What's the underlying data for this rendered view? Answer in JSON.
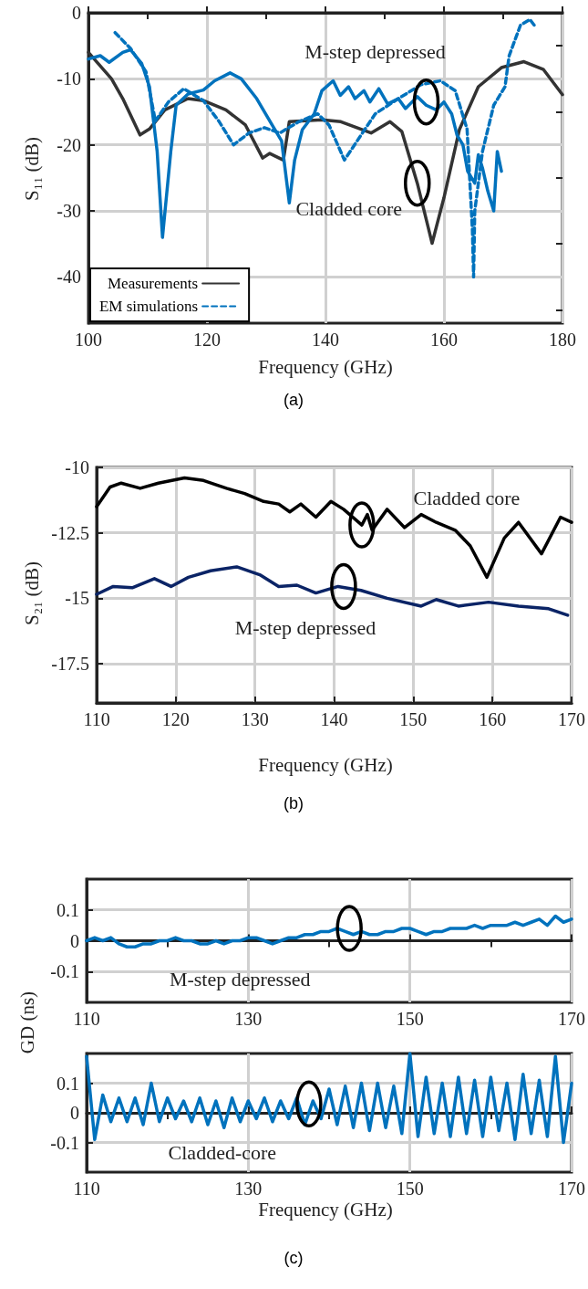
{
  "chart_data": [
    {
      "type": "line",
      "xlabel": "Frequency (GHz)",
      "ylabel": "S₁₁ (dB)",
      "xlim": [
        100,
        180
      ],
      "ylim": [
        -47,
        0
      ],
      "xticks": [
        100,
        {
          "value": 110,
          "label": null
        },
        120,
        {
          "value": 130,
          "label": null
        },
        140,
        {
          "value": 150,
          "label": null
        },
        160,
        {
          "value": 170,
          "label": null
        },
        180
      ],
      "yticks": [
        {
          "value": -45,
          "label": null
        },
        -40,
        {
          "value": -35,
          "label": null
        },
        -30,
        {
          "value": -25,
          "label": null
        },
        -20,
        {
          "value": -15,
          "label": null
        },
        -10,
        {
          "value": -5,
          "label": null
        },
        0
      ],
      "grid": true,
      "legend": "bottom left",
      "series": [
        {
          "name": "Measurements",
          "color": "#333333",
          "line_style": "solid",
          "x": [
            100,
            103.9,
            105.8,
            108.7,
            110.3,
            112.9,
            116.8,
            119.4,
            123.2,
            126.5,
            129.4,
            130.6,
            132.9,
            133.9,
            139.4,
            142.6,
            147.7,
            150.9,
            152.9,
            155.5,
            158,
            160,
            162.6,
            165.8,
            169.7,
            173.5,
            176.8,
            180
          ],
          "values": [
            -6,
            -10,
            -13,
            -18.5,
            -17.6,
            -14.7,
            -13,
            -13.3,
            -14.7,
            -17,
            -22,
            -21.3,
            -22.3,
            -16.5,
            -16.2,
            -16.5,
            -18.2,
            -16.5,
            -18,
            -25.8,
            -34.9,
            -28,
            -17.7,
            -11.2,
            -8.3,
            -7.4,
            -8.6,
            -12.4
          ]
        },
        {
          "color": "#0072bd",
          "line_style": "solid",
          "x": [
            100,
            102,
            103.5,
            105.8,
            107.1,
            109,
            110.3,
            111.6,
            112.5,
            113.9,
            114.8,
            116.8,
            119.4,
            121.3,
            123.9,
            125.8,
            128.4,
            131,
            132.6,
            133.9,
            134.8,
            136.1,
            138.1,
            139.4,
            141.3,
            142.5,
            143.9,
            145,
            146.5,
            147.5,
            149,
            150.5,
            152.3,
            153.5,
            155.5,
            157,
            158.7,
            160,
            161.3,
            162.2,
            163.2,
            164,
            165.2,
            165.8,
            166.5,
            167.4,
            168.4,
            169,
            169.7
          ],
          "values": [
            -7,
            -6.5,
            -7.5,
            -6,
            -5.6,
            -7.7,
            -11.2,
            -21,
            -34,
            -21,
            -14,
            -12.3,
            -11.7,
            -10.3,
            -9.1,
            -10,
            -13,
            -17,
            -19.4,
            -28.8,
            -22.3,
            -17.7,
            -15.3,
            -11.8,
            -10.3,
            -12.5,
            -11.2,
            -13,
            -11.8,
            -13.5,
            -11.5,
            -13.8,
            -13,
            -14.5,
            -12.7,
            -14,
            -14.7,
            -13.5,
            -15.3,
            -18.5,
            -20,
            -24,
            -25.8,
            -21.5,
            -23.5,
            -27,
            -30,
            -21,
            -24
          ]
        },
        {
          "name": "EM simulations",
          "color": "#0072bd",
          "line_style": "dashed",
          "x": [
            104.5,
            107.1,
            109.7,
            111.3,
            113.5,
            116.1,
            119.4,
            122,
            124.5,
            127.1,
            129.7,
            132.3,
            135.5,
            138.7,
            140.6,
            143.2,
            145.8,
            148.4,
            152.3,
            156.1,
            159.4,
            161.9,
            163.9,
            164.8,
            165,
            165.2,
            166.5,
            168.4,
            170.3,
            171,
            172.9,
            174.5,
            175.5
          ],
          "values": [
            -3,
            -5.4,
            -8.9,
            -16.4,
            -13.5,
            -11.5,
            -13.3,
            -16.4,
            -20,
            -18.2,
            -17.4,
            -18.2,
            -16.5,
            -15.3,
            -17,
            -22.3,
            -18.8,
            -15.3,
            -13,
            -10.9,
            -10.3,
            -11.8,
            -17.6,
            -32.9,
            -40,
            -30,
            -21,
            -14,
            -11.2,
            -6.5,
            -1.9,
            -1,
            -2.2
          ]
        }
      ],
      "annotations": [
        {
          "text": "M-step depressed",
          "x": 157,
          "y": -13.5
        },
        {
          "text": "Cladded core",
          "x": 155.5,
          "y": -25.8
        },
        "(a)"
      ]
    },
    {
      "type": "line",
      "xlabel": "Frequency (GHz)",
      "ylabel": "S₂₁ (dB)",
      "xlim": [
        110,
        170
      ],
      "ylim": [
        -19,
        -10
      ],
      "xticks": [
        110,
        120,
        130,
        140,
        150,
        160,
        170
      ],
      "yticks": [
        -17.5,
        -15,
        -12.5,
        -10
      ],
      "grid": true,
      "series": [
        {
          "color": "#000000",
          "line_style": "solid",
          "x": [
            110,
            111.7,
            113.1,
            115.5,
            117.8,
            121.1,
            123.5,
            126.4,
            128.7,
            131.1,
            133,
            134.4,
            135.8,
            137.7,
            139.6,
            141.2,
            143.5,
            144.2,
            144.8,
            146.7,
            148.9,
            151,
            152.9,
            155.3,
            157.2,
            159.3,
            161.5,
            163.3,
            166.2,
            168.6,
            170
          ],
          "values": [
            -11.5,
            -10.75,
            -10.6,
            -10.8,
            -10.6,
            -10.4,
            -10.5,
            -10.8,
            -11,
            -11.3,
            -11.4,
            -11.7,
            -11.4,
            -11.9,
            -11.3,
            -11.6,
            -12.2,
            -11.8,
            -12.4,
            -11.6,
            -12.3,
            -11.8,
            -12.1,
            -12.4,
            -13,
            -14.2,
            -12.7,
            -12.1,
            -13.3,
            -11.9,
            -12.1
          ]
        },
        {
          "color": "#0b2466",
          "line_style": "solid",
          "x": [
            110,
            112.1,
            114.5,
            117.3,
            119.4,
            121.6,
            124.4,
            127.7,
            130.6,
            133,
            135.3,
            137.7,
            140.5,
            143.4,
            146.7,
            151,
            152.9,
            155.7,
            159.5,
            163.3,
            167.1,
            169.5
          ],
          "values": [
            -14.85,
            -14.55,
            -14.6,
            -14.25,
            -14.55,
            -14.2,
            -13.95,
            -13.8,
            -14.1,
            -14.55,
            -14.5,
            -14.8,
            -14.55,
            -14.7,
            -15,
            -15.3,
            -15.05,
            -15.3,
            -15.15,
            -15.3,
            -15.4,
            -15.65
          ]
        }
      ],
      "annotations": [
        {
          "text": "Cladded core",
          "x": 143.5,
          "y": -12.2
        },
        {
          "text": "M-step depressed",
          "x": 141.2,
          "y": -14.55
        },
        "(b)"
      ]
    },
    {
      "type": "line",
      "ylabel": "GD (ns)",
      "xlim": [
        110,
        170
      ],
      "ylim": [
        -0.2,
        0.2
      ],
      "xticks": [
        110,
        {
          "value": 120,
          "label": null
        },
        130,
        {
          "value": 140,
          "label": null
        },
        150,
        {
          "value": 160,
          "label": null
        },
        170
      ],
      "yticks": [
        -0.1,
        0,
        0.1
      ],
      "grid": true,
      "x": [
        110,
        111,
        112,
        113,
        114,
        115,
        116,
        117,
        118,
        119,
        120,
        121,
        122,
        123,
        124,
        125,
        126,
        127,
        128,
        129,
        130,
        131,
        132,
        133,
        134,
        135,
        136,
        137,
        138,
        139,
        140,
        141,
        142,
        143,
        144,
        145,
        146,
        147,
        148,
        149,
        150,
        151,
        152,
        153,
        154,
        155,
        156,
        157,
        158,
        159,
        160,
        161,
        162,
        163,
        164,
        165,
        166,
        167,
        168,
        169,
        170
      ],
      "series": [
        {
          "color": "#0072bd",
          "line_style": "solid",
          "values": [
            0,
            0.01,
            0,
            0.01,
            -0.01,
            -0.02,
            -0.02,
            -0.01,
            -0.01,
            0,
            0,
            0.01,
            0,
            0,
            -0.01,
            -0.01,
            0,
            -0.01,
            0,
            0,
            0.01,
            0.01,
            0,
            -0.01,
            0,
            0.01,
            0.01,
            0.02,
            0.02,
            0.03,
            0.03,
            0.04,
            0.03,
            0.02,
            0.03,
            0.02,
            0.02,
            0.03,
            0.03,
            0.04,
            0.04,
            0.03,
            0.02,
            0.03,
            0.03,
            0.04,
            0.04,
            0.04,
            0.05,
            0.04,
            0.05,
            0.05,
            0.05,
            0.06,
            0.05,
            0.06,
            0.07,
            0.05,
            0.08,
            0.06,
            0.07
          ]
        }
      ],
      "annotations": [
        {
          "text": "M-step depressed",
          "x": 142.5,
          "y": 0.04
        }
      ]
    },
    {
      "type": "line",
      "xlabel": "Frequency (GHz)",
      "xlim": [
        110,
        170
      ],
      "ylim": [
        -0.2,
        0.2
      ],
      "xticks": [
        110,
        {
          "value": 120,
          "label": null
        },
        130,
        {
          "value": 140,
          "label": null
        },
        150,
        {
          "value": 160,
          "label": null
        },
        170
      ],
      "yticks": [
        -0.1,
        0,
        0.1
      ],
      "grid": true,
      "x": [
        110,
        111,
        112,
        113,
        114,
        115,
        116,
        117,
        118,
        119,
        120,
        121,
        122,
        123,
        124,
        125,
        126,
        127,
        128,
        129,
        130,
        131,
        132,
        133,
        134,
        135,
        136,
        137,
        138,
        139,
        140,
        141,
        142,
        143,
        144,
        145,
        146,
        147,
        148,
        149,
        150,
        151,
        152,
        153,
        154,
        155,
        156,
        157,
        158,
        159,
        160,
        161,
        162,
        163,
        164,
        165,
        166,
        167,
        168,
        169,
        170
      ],
      "series": [
        {
          "color": "#0072bd",
          "line_style": "solid",
          "values": [
            0.19,
            -0.09,
            0.06,
            -0.03,
            0.05,
            -0.03,
            0.05,
            -0.04,
            0.1,
            -0.03,
            0.05,
            -0.02,
            0.04,
            -0.03,
            0.05,
            -0.04,
            0.04,
            -0.05,
            0.05,
            -0.03,
            0.04,
            -0.02,
            0.05,
            -0.03,
            0.04,
            -0.02,
            0.05,
            -0.04,
            0.04,
            -0.02,
            0.08,
            -0.04,
            0.09,
            -0.05,
            0.1,
            -0.06,
            0.1,
            -0.05,
            0.09,
            -0.07,
            0.2,
            -0.08,
            0.12,
            -0.07,
            0.1,
            -0.08,
            0.12,
            -0.07,
            0.11,
            -0.08,
            0.12,
            -0.06,
            0.1,
            -0.09,
            0.13,
            -0.07,
            0.11,
            -0.08,
            0.19,
            -0.1,
            0.1
          ]
        }
      ],
      "annotations": [
        {
          "text": "Cladded-core",
          "x": 137.5,
          "y": 0.03
        },
        "(c)"
      ]
    }
  ]
}
